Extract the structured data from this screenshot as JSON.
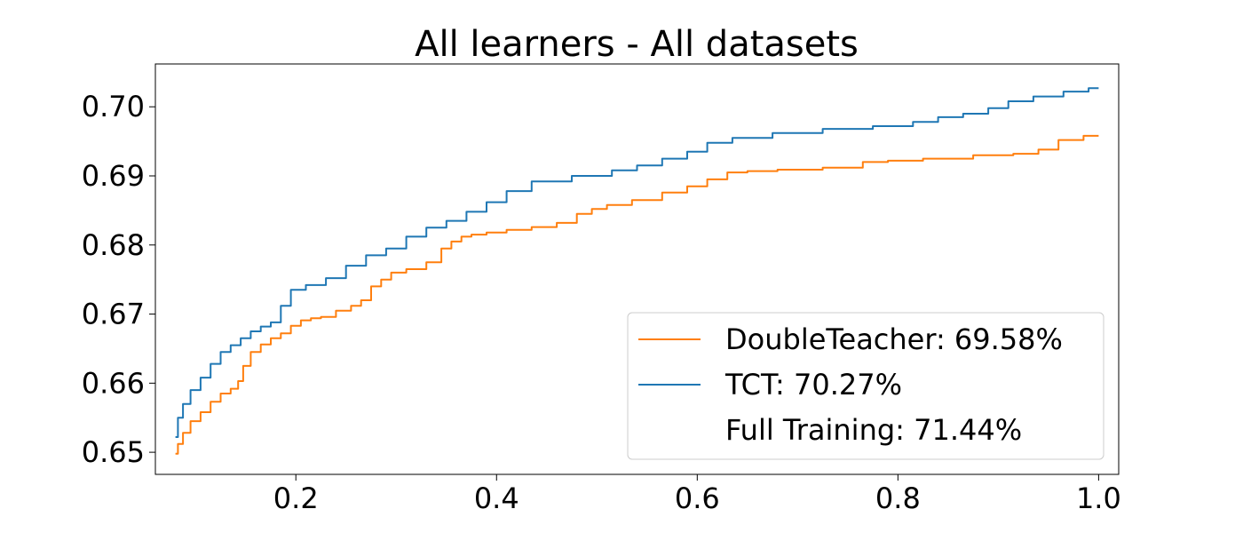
{
  "chart_data": {
    "type": "line",
    "title": "All learners - All datasets",
    "xlabel": "",
    "ylabel": "",
    "xlim": [
      0.06,
      1.02
    ],
    "ylim": [
      0.6468,
      0.7062
    ],
    "xticks": [
      {
        "value": 0.2,
        "label": "0.2"
      },
      {
        "value": 0.4,
        "label": "0.4"
      },
      {
        "value": 0.6,
        "label": "0.6"
      },
      {
        "value": 0.8,
        "label": "0.8"
      },
      {
        "value": 1.0,
        "label": "1.0"
      }
    ],
    "yticks": [
      {
        "value": 0.65,
        "label": "0.65"
      },
      {
        "value": 0.66,
        "label": "0.66"
      },
      {
        "value": 0.67,
        "label": "0.67"
      },
      {
        "value": 0.68,
        "label": "0.68"
      },
      {
        "value": 0.69,
        "label": "0.69"
      },
      {
        "value": 0.7,
        "label": "0.70"
      }
    ],
    "grid": false,
    "legend_position": "bottom-right",
    "series": [
      {
        "name": "DoubleTeacher",
        "legend_label": "DoubleTeacher: 69.58%",
        "color": "#ff7f0e",
        "x": [
          0.08,
          0.085,
          0.09,
          0.1,
          0.11,
          0.12,
          0.13,
          0.14,
          0.145,
          0.15,
          0.16,
          0.17,
          0.18,
          0.19,
          0.2,
          0.21,
          0.22,
          0.23,
          0.25,
          0.26,
          0.27,
          0.28,
          0.29,
          0.3,
          0.32,
          0.34,
          0.35,
          0.36,
          0.37,
          0.38,
          0.4,
          0.42,
          0.45,
          0.47,
          0.49,
          0.5,
          0.52,
          0.55,
          0.58,
          0.6,
          0.62,
          0.64,
          0.66,
          0.7,
          0.75,
          0.78,
          0.8,
          0.85,
          0.9,
          0.93,
          0.95,
          0.97,
          1.0
        ],
        "y": [
          0.6498,
          0.6512,
          0.6528,
          0.6545,
          0.6558,
          0.6573,
          0.6585,
          0.6592,
          0.6603,
          0.6625,
          0.6645,
          0.6656,
          0.6665,
          0.6672,
          0.6683,
          0.6691,
          0.6694,
          0.6696,
          0.6705,
          0.6712,
          0.672,
          0.674,
          0.675,
          0.676,
          0.6765,
          0.6775,
          0.6795,
          0.6805,
          0.6812,
          0.6815,
          0.6818,
          0.6822,
          0.6826,
          0.6832,
          0.6845,
          0.6852,
          0.6858,
          0.6865,
          0.6876,
          0.6885,
          0.6895,
          0.6905,
          0.6907,
          0.6909,
          0.6912,
          0.692,
          0.6922,
          0.6925,
          0.693,
          0.6932,
          0.6938,
          0.6952,
          0.6958
        ]
      },
      {
        "name": "TCT",
        "legend_label": "TCT: 70.27%",
        "color": "#1f77b4",
        "x": [
          0.08,
          0.085,
          0.09,
          0.1,
          0.11,
          0.12,
          0.13,
          0.14,
          0.15,
          0.16,
          0.17,
          0.18,
          0.19,
          0.2,
          0.22,
          0.24,
          0.26,
          0.28,
          0.3,
          0.32,
          0.34,
          0.36,
          0.38,
          0.4,
          0.42,
          0.45,
          0.5,
          0.53,
          0.55,
          0.58,
          0.6,
          0.62,
          0.65,
          0.7,
          0.75,
          0.8,
          0.83,
          0.85,
          0.88,
          0.9,
          0.92,
          0.95,
          0.98,
          1.0
        ],
        "y": [
          0.6522,
          0.655,
          0.657,
          0.659,
          0.6608,
          0.6628,
          0.6645,
          0.6655,
          0.6665,
          0.6675,
          0.6682,
          0.6688,
          0.6712,
          0.6735,
          0.6742,
          0.6752,
          0.677,
          0.6785,
          0.6795,
          0.6812,
          0.6825,
          0.6835,
          0.6848,
          0.6862,
          0.6878,
          0.6892,
          0.69,
          0.6908,
          0.6915,
          0.6925,
          0.6935,
          0.6948,
          0.6955,
          0.6962,
          0.6968,
          0.6972,
          0.6978,
          0.6985,
          0.699,
          0.6998,
          0.7008,
          0.7015,
          0.7022,
          0.7027
        ]
      },
      {
        "name": "Full Training",
        "legend_label": "Full Training: 71.44%",
        "color": "#ffffff",
        "x": [],
        "y": []
      }
    ]
  }
}
